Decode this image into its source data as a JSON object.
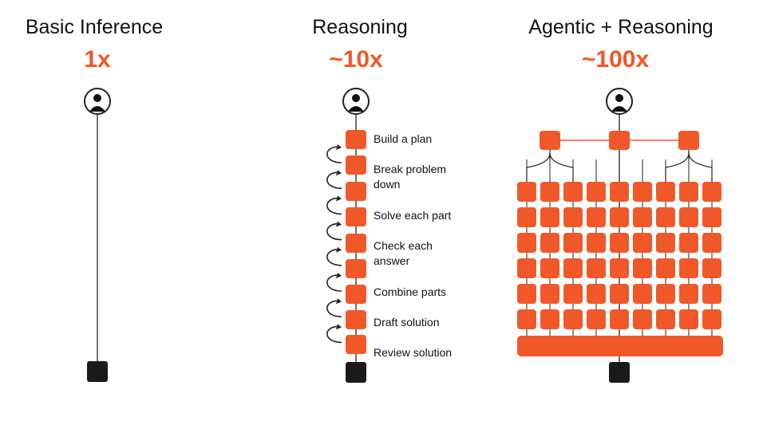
{
  "columns": [
    {
      "title": "Basic Inference",
      "multiplier": "1x"
    },
    {
      "title": "Reasoning",
      "multiplier": "~10x"
    },
    {
      "title": "Agentic + Reasoning",
      "multiplier": "~100x"
    }
  ],
  "reasoning_steps": [
    "Build a plan",
    "Break problem down",
    "Solve each part",
    "Check each answer",
    "Combine parts",
    "Draft solution",
    "Review solution"
  ],
  "colors": {
    "accent": "#f0582a",
    "dark": "#1a1a1a",
    "line": "#222222"
  },
  "icons": {
    "user": "user-icon",
    "output": "output-block-icon",
    "loop": "loop-arrow-icon"
  }
}
